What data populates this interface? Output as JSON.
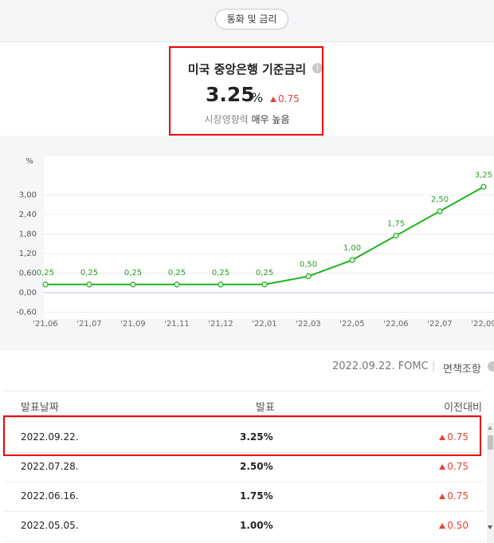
{
  "top_button": "통화 및 금리",
  "summary": {
    "title": "미국 중앙은행 기준금리",
    "value": "3.25",
    "unit": "%",
    "change": "0.75",
    "impact_label": "시장영향력",
    "impact_level": "매우 높음"
  },
  "chart_data": {
    "type": "line",
    "y_unit": "%",
    "categories": [
      "'21,06",
      "'21,07",
      "'21,09",
      "'21,11",
      "'21,12",
      "'22,01",
      "'22,03",
      "'22,05",
      "'22,06",
      "'22,07",
      "'22,09"
    ],
    "values": [
      0.25,
      0.25,
      0.25,
      0.25,
      0.25,
      0.25,
      0.5,
      1.0,
      1.75,
      2.5,
      3.25
    ],
    "value_labels": [
      "0,25",
      "0,25",
      "0,25",
      "0,25",
      "0,25",
      "0,25",
      "0,50",
      "1,00",
      "1,75",
      "2,50",
      "3,25"
    ],
    "color": "#1fb51f",
    "ylim": [
      -0.6,
      4.2
    ],
    "yticks": [
      {
        "value": -0.6,
        "label": "-0,60"
      },
      {
        "value": 0,
        "label": "0,00"
      },
      {
        "value": 0.6,
        "label": "0,60"
      },
      {
        "value": 1.2,
        "label": "1,20"
      },
      {
        "value": 1.8,
        "label": "1,80"
      },
      {
        "value": 2.4,
        "label": "2,40"
      },
      {
        "value": 3,
        "label": "3,00"
      }
    ],
    "grid": true
  },
  "info": {
    "date_event": "2022.09.22. FOMC",
    "disclaimer": "면책조항"
  },
  "table": {
    "headers": [
      "발표날짜",
      "발표",
      "이전대비"
    ],
    "rows": [
      [
        "2022.09.22.",
        "3.25%",
        "0.75"
      ],
      [
        "2022.07.28.",
        "2.50%",
        "0.75"
      ],
      [
        "2022.06.16.",
        "1.75%",
        "0.75"
      ],
      [
        "2022.05.05.",
        "1.00%",
        "0.50"
      ]
    ]
  }
}
